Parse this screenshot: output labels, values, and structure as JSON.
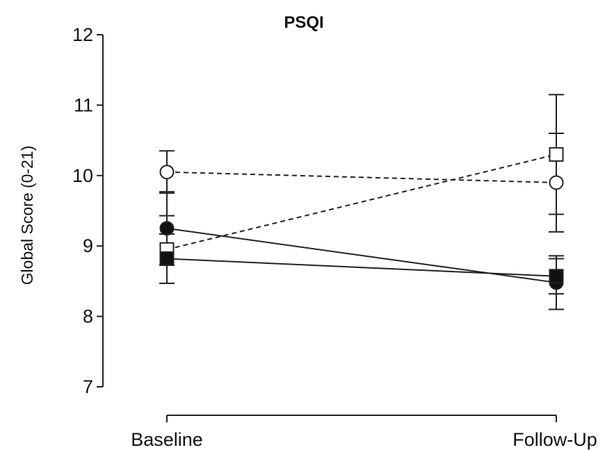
{
  "chart_data": {
    "type": "line",
    "title": "PSQI",
    "ylabel": "Global Score (0-21)",
    "xlabel": "",
    "categories": [
      "Baseline",
      "Follow-Up"
    ],
    "ylim": [
      7,
      12
    ],
    "yticks": [
      "7",
      "8",
      "9",
      "10",
      "11",
      "12"
    ],
    "grid": false,
    "series": [
      {
        "marker": "circle-open",
        "line": "dashed",
        "color": "#222222",
        "values": [
          10.05,
          9.9
        ],
        "error": [
          0.3,
          0.7
        ]
      },
      {
        "marker": "square-open",
        "line": "dashed",
        "color": "#222222",
        "values": [
          8.95,
          10.3
        ],
        "error": [
          0.48,
          0.85
        ]
      },
      {
        "marker": "circle-filled",
        "line": "solid",
        "color": "#222222",
        "values": [
          9.25,
          8.48
        ],
        "error": [
          0.52,
          0.38
        ]
      },
      {
        "marker": "square-filled",
        "line": "solid",
        "color": "#222222",
        "values": [
          8.82,
          8.57
        ],
        "error": [
          0.35,
          0.25
        ]
      }
    ]
  }
}
